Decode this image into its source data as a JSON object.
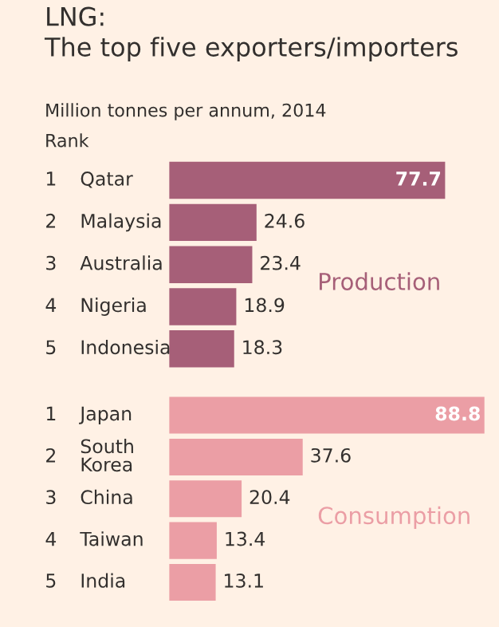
{
  "chart_data": [
    {
      "type": "bar",
      "orientation": "horizontal",
      "title": "LNG:\nThe top five exporters/importers",
      "subtitle": "Million tonnes per annum, 2014",
      "annotations": [
        "Rank"
      ],
      "categories": [
        "1 Qatar",
        "2 Malaysia",
        "3 Australia",
        "4 Nigeria",
        "5 Indonesia"
      ],
      "series": [
        {
          "name": "Production",
          "color": "#a65f78",
          "values": [
            77.7,
            24.6,
            23.4,
            18.9,
            18.3
          ]
        }
      ],
      "data_labels": true,
      "tick_labels": "y"
    },
    {
      "type": "bar",
      "orientation": "horizontal",
      "categories": [
        "1 Japan",
        "2 South\nKorea",
        "3 China",
        "4 Taiwan",
        "5 India"
      ],
      "series": [
        {
          "name": "Consumption",
          "color": "#eb9ea5",
          "values": [
            88.8,
            37.6,
            20.4,
            13.4,
            13.1
          ]
        }
      ],
      "data_labels": true,
      "tick_labels": "y"
    }
  ]
}
